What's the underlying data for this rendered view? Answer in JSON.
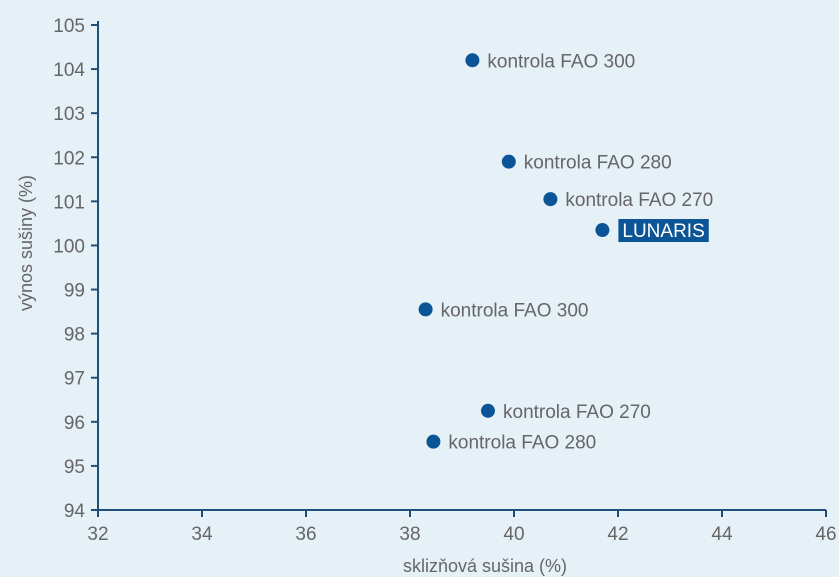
{
  "chart_data": {
    "type": "scatter",
    "xlabel": "sklizňová sušina (%)",
    "ylabel": "výnos sušiny (%)",
    "xlim": [
      32,
      46
    ],
    "ylim": [
      94,
      105
    ],
    "x_ticks": [
      32,
      34,
      36,
      38,
      40,
      42,
      44,
      46
    ],
    "y_ticks": [
      94,
      95,
      96,
      97,
      98,
      99,
      100,
      101,
      102,
      103,
      104,
      105
    ],
    "grid": false,
    "legend": "none",
    "colors": {
      "point": "#0b5596",
      "axis": "#1f4e79",
      "text": "#666666",
      "highlight_bg": "#0b5596",
      "background": "#e6f0f7"
    },
    "points": [
      {
        "x": 39.2,
        "y": 104.2,
        "label": "kontrola FAO 300"
      },
      {
        "x": 39.9,
        "y": 101.9,
        "label": "kontrola FAO 280"
      },
      {
        "x": 40.7,
        "y": 101.05,
        "label": "kontrola FAO 270"
      },
      {
        "x": 41.7,
        "y": 100.35,
        "label": "LUNARIS",
        "highlight": true
      },
      {
        "x": 38.3,
        "y": 98.55,
        "label": "kontrola FAO 300"
      },
      {
        "x": 39.5,
        "y": 96.25,
        "label": "kontrola FAO 270"
      },
      {
        "x": 38.45,
        "y": 95.55,
        "label": "kontrola FAO 280"
      }
    ]
  }
}
